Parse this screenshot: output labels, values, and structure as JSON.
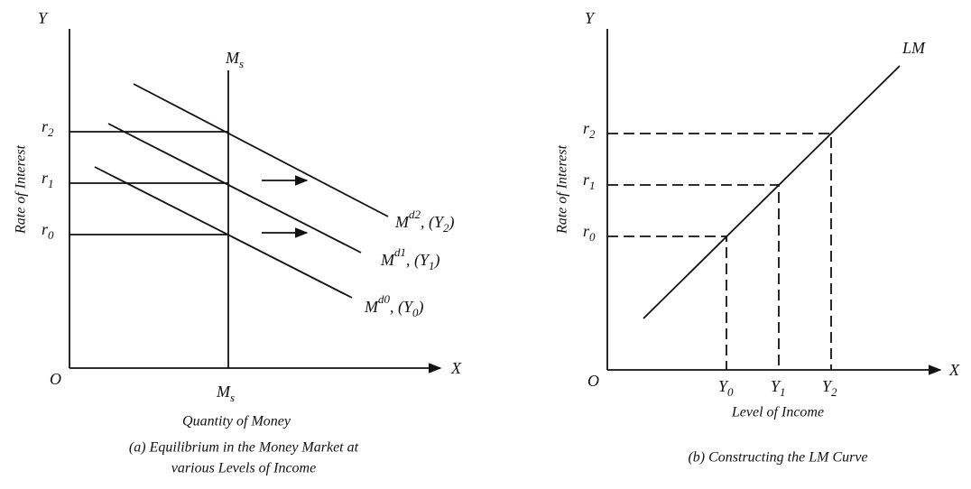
{
  "left": {
    "y_axis": "Y",
    "x_axis": "X",
    "origin": "O",
    "ms_top": {
      "base": "M",
      "sub": "s"
    },
    "ms_bottom": {
      "base": "M",
      "sub": "s"
    },
    "rates": [
      {
        "base": "r",
        "sub": "2"
      },
      {
        "base": "r",
        "sub": "1"
      },
      {
        "base": "r",
        "sub": "0"
      }
    ],
    "y_label": "Rate of Interest",
    "demand": [
      {
        "base": "M",
        "sup": "d2",
        "text": ", (Y",
        "sub": "2",
        "close": ")"
      },
      {
        "base": "M",
        "sup": "d1",
        "text": ", (Y",
        "sub": "1",
        "close": ")"
      },
      {
        "base": "M",
        "sup": "d0",
        "text": ", (Y",
        "sub": "0",
        "close": ")"
      }
    ],
    "x_label": "Quantity of Money",
    "caption": [
      "(a) Equilibrium in the Money Market at",
      "various Levels of Income"
    ]
  },
  "right": {
    "y_axis": "Y",
    "x_axis": "X",
    "origin": "O",
    "curve": "LM",
    "rates": [
      {
        "base": "r",
        "sub": "2"
      },
      {
        "base": "r",
        "sub": "1"
      },
      {
        "base": "r",
        "sub": "0"
      }
    ],
    "y_label": "Rate of Interest",
    "incomes": [
      {
        "base": "Y",
        "sub": "0"
      },
      {
        "base": "Y",
        "sub": "1"
      },
      {
        "base": "Y",
        "sub": "2"
      }
    ],
    "x_label": "Level of Income",
    "caption": "(b) Constructing the LM Curve"
  }
}
